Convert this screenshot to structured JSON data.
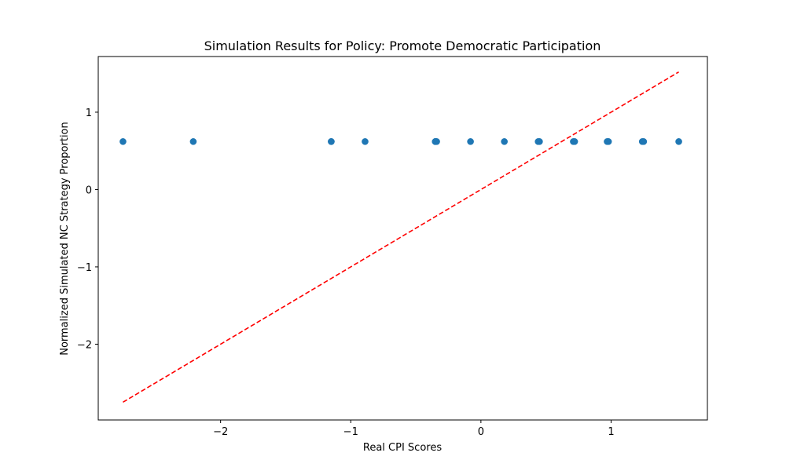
{
  "chart_data": {
    "type": "scatter",
    "title": "Simulation Results for Policy: Promote Democratic Participation",
    "xlabel": "Real CPI Scores",
    "ylabel": "Normalized Simulated NC Strategy Proportion",
    "xlim": [
      -2.94,
      1.74
    ],
    "ylim": [
      -2.98,
      1.72
    ],
    "x_ticks": [
      {
        "value": -2,
        "label": "−2"
      },
      {
        "value": -1,
        "label": "−1"
      },
      {
        "value": 0,
        "label": "0"
      },
      {
        "value": 1,
        "label": "1"
      }
    ],
    "y_ticks": [
      {
        "value": -2,
        "label": "−2"
      },
      {
        "value": -1,
        "label": "−1"
      },
      {
        "value": 0,
        "label": "0"
      },
      {
        "value": 1,
        "label": "1"
      }
    ],
    "series": [
      {
        "kind": "scatter",
        "color": "#1f77b4",
        "points": [
          {
            "x": -2.75,
            "y": 0.62
          },
          {
            "x": -2.21,
            "y": 0.62
          },
          {
            "x": -1.15,
            "y": 0.62
          },
          {
            "x": -1.15,
            "y": 0.62
          },
          {
            "x": -0.89,
            "y": 0.62
          },
          {
            "x": -0.35,
            "y": 0.62
          },
          {
            "x": -0.35,
            "y": 0.62
          },
          {
            "x": -0.34,
            "y": 0.62
          },
          {
            "x": -0.35,
            "y": 0.62
          },
          {
            "x": -0.08,
            "y": 0.62
          },
          {
            "x": 0.18,
            "y": 0.62
          },
          {
            "x": 0.45,
            "y": 0.62
          },
          {
            "x": 0.44,
            "y": 0.62
          },
          {
            "x": 0.71,
            "y": 0.62
          },
          {
            "x": 0.72,
            "y": 0.62
          },
          {
            "x": 0.98,
            "y": 0.62
          },
          {
            "x": 0.97,
            "y": 0.62
          },
          {
            "x": 1.24,
            "y": 0.62
          },
          {
            "x": 1.25,
            "y": 0.62
          },
          {
            "x": 1.52,
            "y": 0.62
          }
        ]
      },
      {
        "kind": "line",
        "style": "dashed",
        "color": "#ff0000",
        "points": [
          {
            "x": -2.75,
            "y": -2.75
          },
          {
            "x": 1.52,
            "y": 1.52
          }
        ]
      }
    ],
    "grid": false,
    "legend": "none"
  }
}
